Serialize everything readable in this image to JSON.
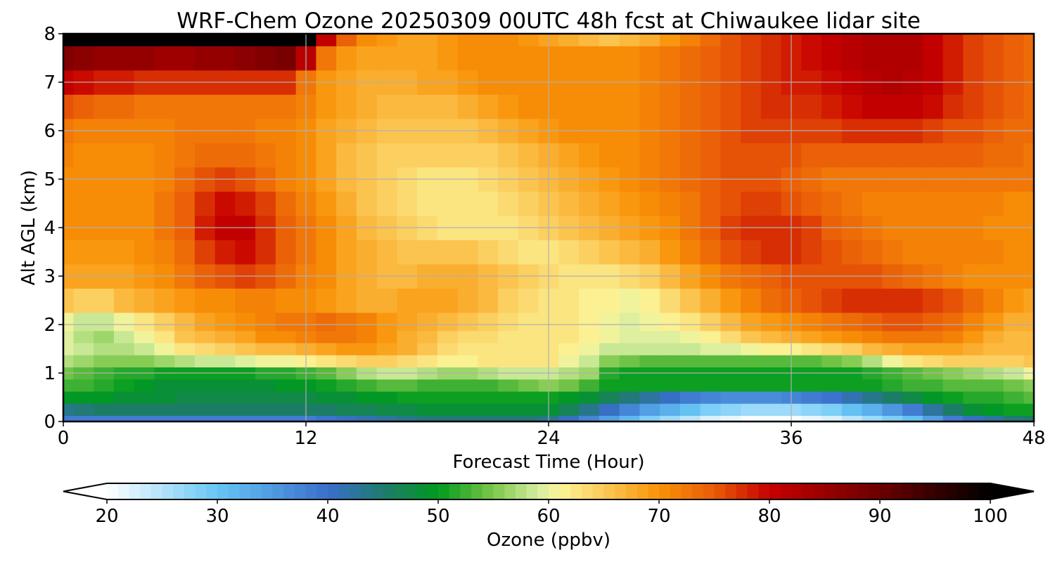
{
  "chart_data": {
    "type": "heatmap",
    "title": "WRF-Chem Ozone  20250309 00UTC 48h fcst at Chiwaukee lidar site",
    "xlabel": "Forecast Time (Hour)",
    "ylabel": "Alt AGL (km)",
    "xlim": [
      0,
      48
    ],
    "ylim": [
      0,
      8
    ],
    "xticks": [
      0,
      12,
      24,
      36,
      48
    ],
    "yticks": [
      0,
      1,
      2,
      3,
      4,
      5,
      6,
      7,
      8
    ],
    "grid": true,
    "colorbar": {
      "label": "Ozone  (ppbv)",
      "min": 20,
      "max": 100,
      "step": 1,
      "ticks": [
        20,
        30,
        40,
        50,
        60,
        70,
        80,
        90,
        100
      ],
      "extend": "both",
      "stops": [
        {
          "value": 20,
          "color": "#ffffff"
        },
        {
          "value": 30,
          "color": "#66c6f5"
        },
        {
          "value": 40,
          "color": "#3a6fcc"
        },
        {
          "value": 45,
          "color": "#1f7a6e"
        },
        {
          "value": 50,
          "color": "#009a1e"
        },
        {
          "value": 55,
          "color": "#7cc84a"
        },
        {
          "value": 59,
          "color": "#d4eda0"
        },
        {
          "value": 61,
          "color": "#fbf59a"
        },
        {
          "value": 66,
          "color": "#fbbf47"
        },
        {
          "value": 70,
          "color": "#f99207"
        },
        {
          "value": 75,
          "color": "#e95c08"
        },
        {
          "value": 80,
          "color": "#c70000"
        },
        {
          "value": 90,
          "color": "#6b0000"
        },
        {
          "value": 100,
          "color": "#000000"
        }
      ]
    },
    "grid_x": [
      0,
      1,
      2,
      3,
      4,
      5,
      6,
      7,
      8,
      9,
      10,
      11,
      12,
      13,
      14,
      15,
      16,
      17,
      18,
      19,
      20,
      21,
      22,
      23,
      24,
      25,
      26,
      27,
      28,
      29,
      30,
      31,
      32,
      33,
      34,
      35,
      36,
      37,
      38,
      39,
      40,
      41,
      42,
      43,
      44,
      45,
      46,
      47,
      48
    ],
    "grid_y": [
      0,
      0.25,
      0.5,
      0.75,
      1,
      1.25,
      1.5,
      1.75,
      2,
      2.5,
      3,
      3.5,
      4,
      4.5,
      5,
      5.5,
      6,
      6.5,
      7,
      7.5,
      8
    ],
    "z": [
      [
        38,
        38,
        38,
        38,
        38,
        38,
        38,
        38,
        38,
        38,
        38,
        38,
        38,
        39,
        40,
        41,
        42,
        43,
        44,
        44,
        44,
        44,
        44,
        44,
        43,
        40,
        37,
        34,
        31,
        28,
        26,
        24,
        22,
        21,
        20,
        20,
        20,
        21,
        22,
        24,
        26,
        28,
        30,
        34,
        38,
        40,
        42,
        44,
        45
      ],
      [
        43,
        44,
        45,
        45,
        45,
        45,
        45,
        45,
        45,
        45,
        45,
        45,
        45,
        45,
        46,
        46,
        47,
        47,
        48,
        48,
        48,
        48,
        48,
        48,
        48,
        46,
        43,
        40,
        37,
        34,
        32,
        30,
        28,
        27,
        26,
        26,
        26,
        27,
        28,
        30,
        32,
        35,
        38,
        42,
        45,
        48,
        49,
        50,
        50
      ],
      [
        49,
        49,
        49,
        48,
        48,
        48,
        47,
        47,
        47,
        47,
        47,
        47,
        47,
        48,
        48,
        49,
        49,
        50,
        50,
        50,
        50,
        50,
        50,
        50,
        50,
        49,
        48,
        46,
        44,
        42,
        40,
        38,
        37,
        36,
        36,
        36,
        37,
        38,
        39,
        41,
        43,
        45,
        47,
        49,
        50,
        51,
        51,
        52,
        53
      ],
      [
        52,
        52,
        51,
        50,
        49,
        48,
        48,
        48,
        48,
        48,
        48,
        49,
        49,
        50,
        51,
        52,
        53,
        53,
        52,
        52,
        52,
        52,
        53,
        54,
        55,
        54,
        52,
        50,
        50,
        50,
        50,
        50,
        50,
        50,
        50,
        50,
        50,
        50,
        50,
        50,
        50,
        51,
        52,
        52,
        53,
        53,
        53,
        54,
        55
      ],
      [
        54,
        53,
        52,
        51,
        51,
        50,
        50,
        50,
        50,
        50,
        51,
        51,
        52,
        53,
        55,
        57,
        58,
        58,
        57,
        56,
        56,
        57,
        58,
        58,
        58,
        57,
        56,
        51,
        50,
        50,
        50,
        50,
        50,
        50,
        50,
        50,
        50,
        50,
        50,
        50,
        51,
        52,
        53,
        54,
        55,
        56,
        57,
        58,
        60
      ],
      [
        57,
        56,
        55,
        55,
        55,
        56,
        57,
        58,
        58,
        59,
        60,
        60,
        61,
        62,
        63,
        64,
        64,
        63,
        62,
        61,
        61,
        62,
        62,
        62,
        62,
        60,
        58,
        55,
        54,
        53,
        53,
        53,
        53,
        53,
        53,
        53,
        53,
        53,
        54,
        55,
        57,
        60,
        62,
        63,
        64,
        64,
        64,
        64,
        65
      ],
      [
        59,
        58,
        57,
        57,
        58,
        60,
        62,
        63,
        64,
        65,
        66,
        66,
        67,
        68,
        69,
        69,
        68,
        67,
        65,
        63,
        62,
        62,
        62,
        62,
        62,
        61,
        60,
        58,
        58,
        58,
        58,
        58,
        59,
        59,
        60,
        61,
        61,
        62,
        63,
        64,
        66,
        67,
        68,
        68,
        68,
        67,
        66,
        66,
        66
      ],
      [
        59,
        57,
        56,
        58,
        60,
        62,
        65,
        66,
        67,
        68,
        70,
        70,
        71,
        72,
        72,
        71,
        69,
        67,
        66,
        64,
        63,
        63,
        62,
        62,
        62,
        62,
        61,
        60,
        59,
        59,
        59,
        60,
        61,
        63,
        65,
        66,
        67,
        68,
        69,
        70,
        71,
        72,
        72,
        72,
        71,
        69,
        67,
        66,
        66
      ],
      [
        60,
        58,
        58,
        60,
        62,
        64,
        66,
        68,
        69,
        70,
        71,
        72,
        72,
        73,
        72,
        71,
        69,
        68,
        67,
        66,
        65,
        64,
        63,
        62,
        62,
        62,
        61,
        60,
        59,
        60,
        61,
        62,
        64,
        66,
        68,
        69,
        70,
        71,
        72,
        73,
        74,
        75,
        75,
        74,
        73,
        71,
        69,
        67,
        67
      ],
      [
        65,
        64,
        64,
        66,
        67,
        68,
        69,
        70,
        70,
        71,
        71,
        70,
        70,
        69,
        68,
        67,
        67,
        68,
        68,
        68,
        67,
        66,
        64,
        63,
        62,
        62,
        61,
        61,
        60,
        61,
        63,
        65,
        67,
        69,
        71,
        73,
        74,
        75,
        76,
        77,
        77,
        77,
        77,
        76,
        75,
        73,
        71,
        69,
        68
      ],
      [
        68,
        68,
        68,
        68,
        69,
        70,
        72,
        74,
        75,
        76,
        75,
        73,
        71,
        70,
        68,
        67,
        66,
        66,
        67,
        67,
        67,
        66,
        65,
        64,
        63,
        62,
        62,
        62,
        63,
        64,
        66,
        68,
        70,
        72,
        73,
        74,
        75,
        75,
        75,
        75,
        75,
        74,
        73,
        72,
        71,
        70,
        70,
        70,
        70
      ],
      [
        69,
        69,
        69,
        69,
        70,
        71,
        73,
        76,
        78,
        79,
        77,
        74,
        72,
        70,
        68,
        67,
        66,
        65,
        65,
        65,
        65,
        64,
        63,
        62,
        62,
        63,
        64,
        65,
        66,
        67,
        69,
        71,
        73,
        75,
        76,
        77,
        77,
        76,
        75,
        74,
        73,
        72,
        71,
        71,
        71,
        71,
        71,
        70,
        70
      ],
      [
        70,
        70,
        70,
        70,
        70,
        72,
        74,
        78,
        80,
        80,
        77,
        74,
        72,
        70,
        68,
        66,
        65,
        64,
        63,
        62,
        62,
        62,
        62,
        63,
        64,
        65,
        66,
        67,
        68,
        69,
        70,
        72,
        74,
        76,
        77,
        77,
        77,
        76,
        74,
        73,
        72,
        71,
        71,
        71,
        71,
        71,
        70,
        70,
        70
      ],
      [
        70,
        70,
        70,
        70,
        70,
        72,
        74,
        77,
        79,
        78,
        76,
        73,
        71,
        69,
        67,
        65,
        64,
        63,
        62,
        62,
        62,
        62,
        63,
        64,
        65,
        66,
        67,
        68,
        69,
        70,
        71,
        72,
        74,
        75,
        76,
        76,
        75,
        74,
        73,
        72,
        71,
        71,
        71,
        71,
        71,
        71,
        71,
        70,
        70
      ],
      [
        70,
        70,
        70,
        70,
        70,
        71,
        73,
        75,
        76,
        75,
        73,
        71,
        70,
        68,
        66,
        65,
        64,
        63,
        62,
        62,
        62,
        63,
        64,
        65,
        66,
        67,
        68,
        69,
        70,
        71,
        72,
        73,
        74,
        75,
        75,
        75,
        74,
        73,
        72,
        72,
        72,
        72,
        72,
        72,
        72,
        72,
        72,
        72,
        72
      ],
      [
        71,
        70,
        70,
        70,
        70,
        71,
        72,
        73,
        73,
        73,
        72,
        71,
        70,
        68,
        66,
        65,
        64,
        64,
        64,
        64,
        64,
        64,
        65,
        66,
        67,
        68,
        69,
        70,
        70,
        71,
        72,
        73,
        74,
        75,
        75,
        75,
        75,
        74,
        74,
        74,
        74,
        74,
        74,
        74,
        74,
        74,
        73,
        73,
        72
      ],
      [
        72,
        71,
        71,
        71,
        71,
        71,
        72,
        72,
        72,
        72,
        71,
        71,
        70,
        68,
        67,
        66,
        65,
        65,
        65,
        65,
        65,
        66,
        67,
        68,
        69,
        70,
        70,
        70,
        70,
        71,
        72,
        73,
        74,
        75,
        76,
        76,
        76,
        76,
        76,
        77,
        77,
        77,
        77,
        76,
        75,
        75,
        74,
        73,
        73
      ],
      [
        75,
        74,
        73,
        73,
        72,
        72,
        72,
        72,
        72,
        72,
        72,
        72,
        71,
        69,
        68,
        67,
        66,
        66,
        66,
        66,
        67,
        68,
        69,
        70,
        70,
        70,
        70,
        70,
        70,
        71,
        72,
        73,
        74,
        75,
        76,
        77,
        77,
        77,
        78,
        79,
        80,
        80,
        80,
        79,
        77,
        76,
        75,
        74,
        73
      ],
      [
        80,
        79,
        78,
        78,
        77,
        77,
        77,
        77,
        77,
        77,
        77,
        77,
        72,
        69,
        68,
        67,
        67,
        67,
        68,
        68,
        69,
        70,
        70,
        70,
        70,
        70,
        70,
        70,
        70,
        71,
        72,
        73,
        74,
        75,
        76,
        77,
        78,
        78,
        79,
        80,
        81,
        82,
        81,
        80,
        78,
        76,
        75,
        74,
        73
      ],
      [
        87,
        86,
        85,
        85,
        85,
        84,
        84,
        85,
        85,
        86,
        87,
        88,
        81,
        72,
        69,
        68,
        68,
        68,
        68,
        69,
        70,
        70,
        70,
        70,
        70,
        70,
        70,
        70,
        70,
        71,
        72,
        73,
        74,
        75,
        76,
        77,
        78,
        79,
        80,
        81,
        82,
        82,
        82,
        80,
        78,
        76,
        75,
        74,
        73
      ],
      [
        100,
        100,
        100,
        100,
        100,
        100,
        100,
        100,
        100,
        100,
        100,
        100,
        100,
        80,
        74,
        70,
        69,
        68,
        68,
        69,
        70,
        70,
        70,
        69,
        68,
        67,
        66,
        65,
        66,
        67,
        69,
        71,
        73,
        75,
        76,
        77,
        78,
        79,
        80,
        81,
        82,
        82,
        82,
        80,
        78,
        76,
        75,
        74,
        73
      ]
    ]
  }
}
